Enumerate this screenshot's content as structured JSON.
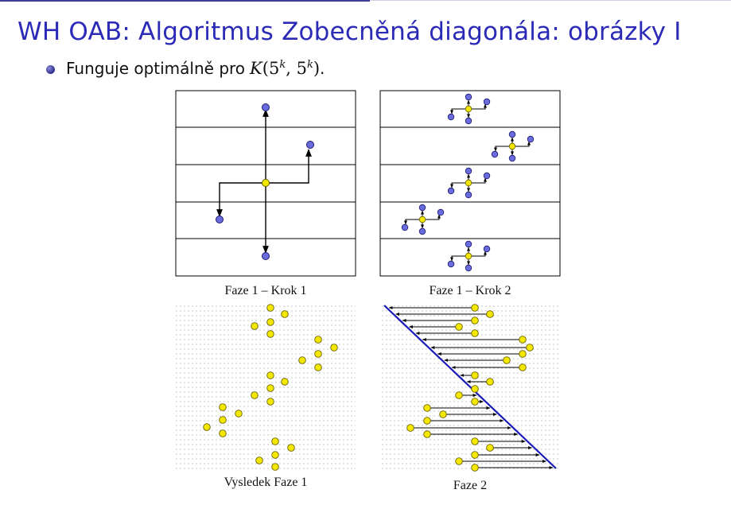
{
  "slide": {
    "title": "WH OAB: Algoritmus Zobecněná diagonála: obrázky I",
    "bullet_text": "Funguje optimálně pro",
    "bullet_math": {
      "fn": "K",
      "base": "5",
      "exp": "k"
    },
    "bullet_end": "."
  },
  "figures": {
    "fig1_caption": "Faze 1 – Krok 1",
    "fig2_caption": "Faze 1 – Krok 2",
    "fig3_caption": "Vysledek Faze 1",
    "fig4_caption": "Faze 2"
  },
  "colors": {
    "title": "#2b2bb8",
    "node_blue": "#6b6be0",
    "node_yellow": "#f5e800",
    "diagonal": "#1a1ab8"
  }
}
